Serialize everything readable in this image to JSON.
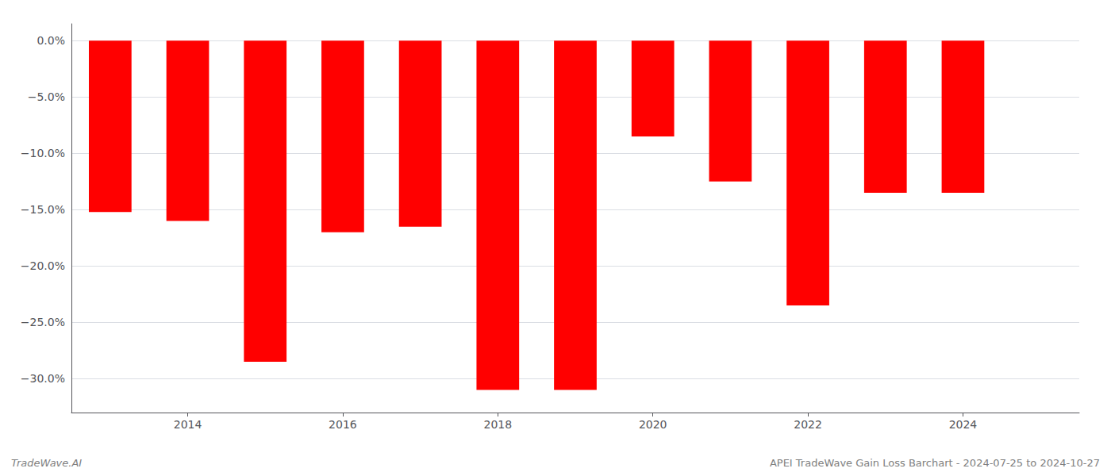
{
  "chart_data": {
    "type": "bar",
    "x": [
      2013,
      2014,
      2015,
      2016,
      2017,
      2018,
      2019,
      2020,
      2021,
      2022,
      2023,
      2024
    ],
    "values": [
      -15.2,
      -16.0,
      -28.5,
      -17.0,
      -16.5,
      -31.0,
      -31.0,
      -8.5,
      -12.5,
      -23.5,
      -13.5,
      -13.5
    ],
    "color": "#ff0000",
    "xlim": [
      2012.5,
      2025.5
    ],
    "xticks": [
      2014,
      2016,
      2018,
      2020,
      2022,
      2024
    ],
    "ylim": [
      -33,
      1.5
    ],
    "yticks": [
      {
        "value": 0.0,
        "label": "0.0%"
      },
      {
        "value": -5.0,
        "label": "−5.0%"
      },
      {
        "value": -10.0,
        "label": "−10.0%"
      },
      {
        "value": -15.0,
        "label": "−15.0%"
      },
      {
        "value": -20.0,
        "label": "−20.0%"
      },
      {
        "value": -25.0,
        "label": "−25.0%"
      },
      {
        "value": -30.0,
        "label": "−30.0%"
      }
    ],
    "grid": true,
    "annotations": [
      "TradeWave.AI",
      "APEI TradeWave Gain Loss Barchart - 2024-07-25 to 2024-10-27"
    ]
  }
}
